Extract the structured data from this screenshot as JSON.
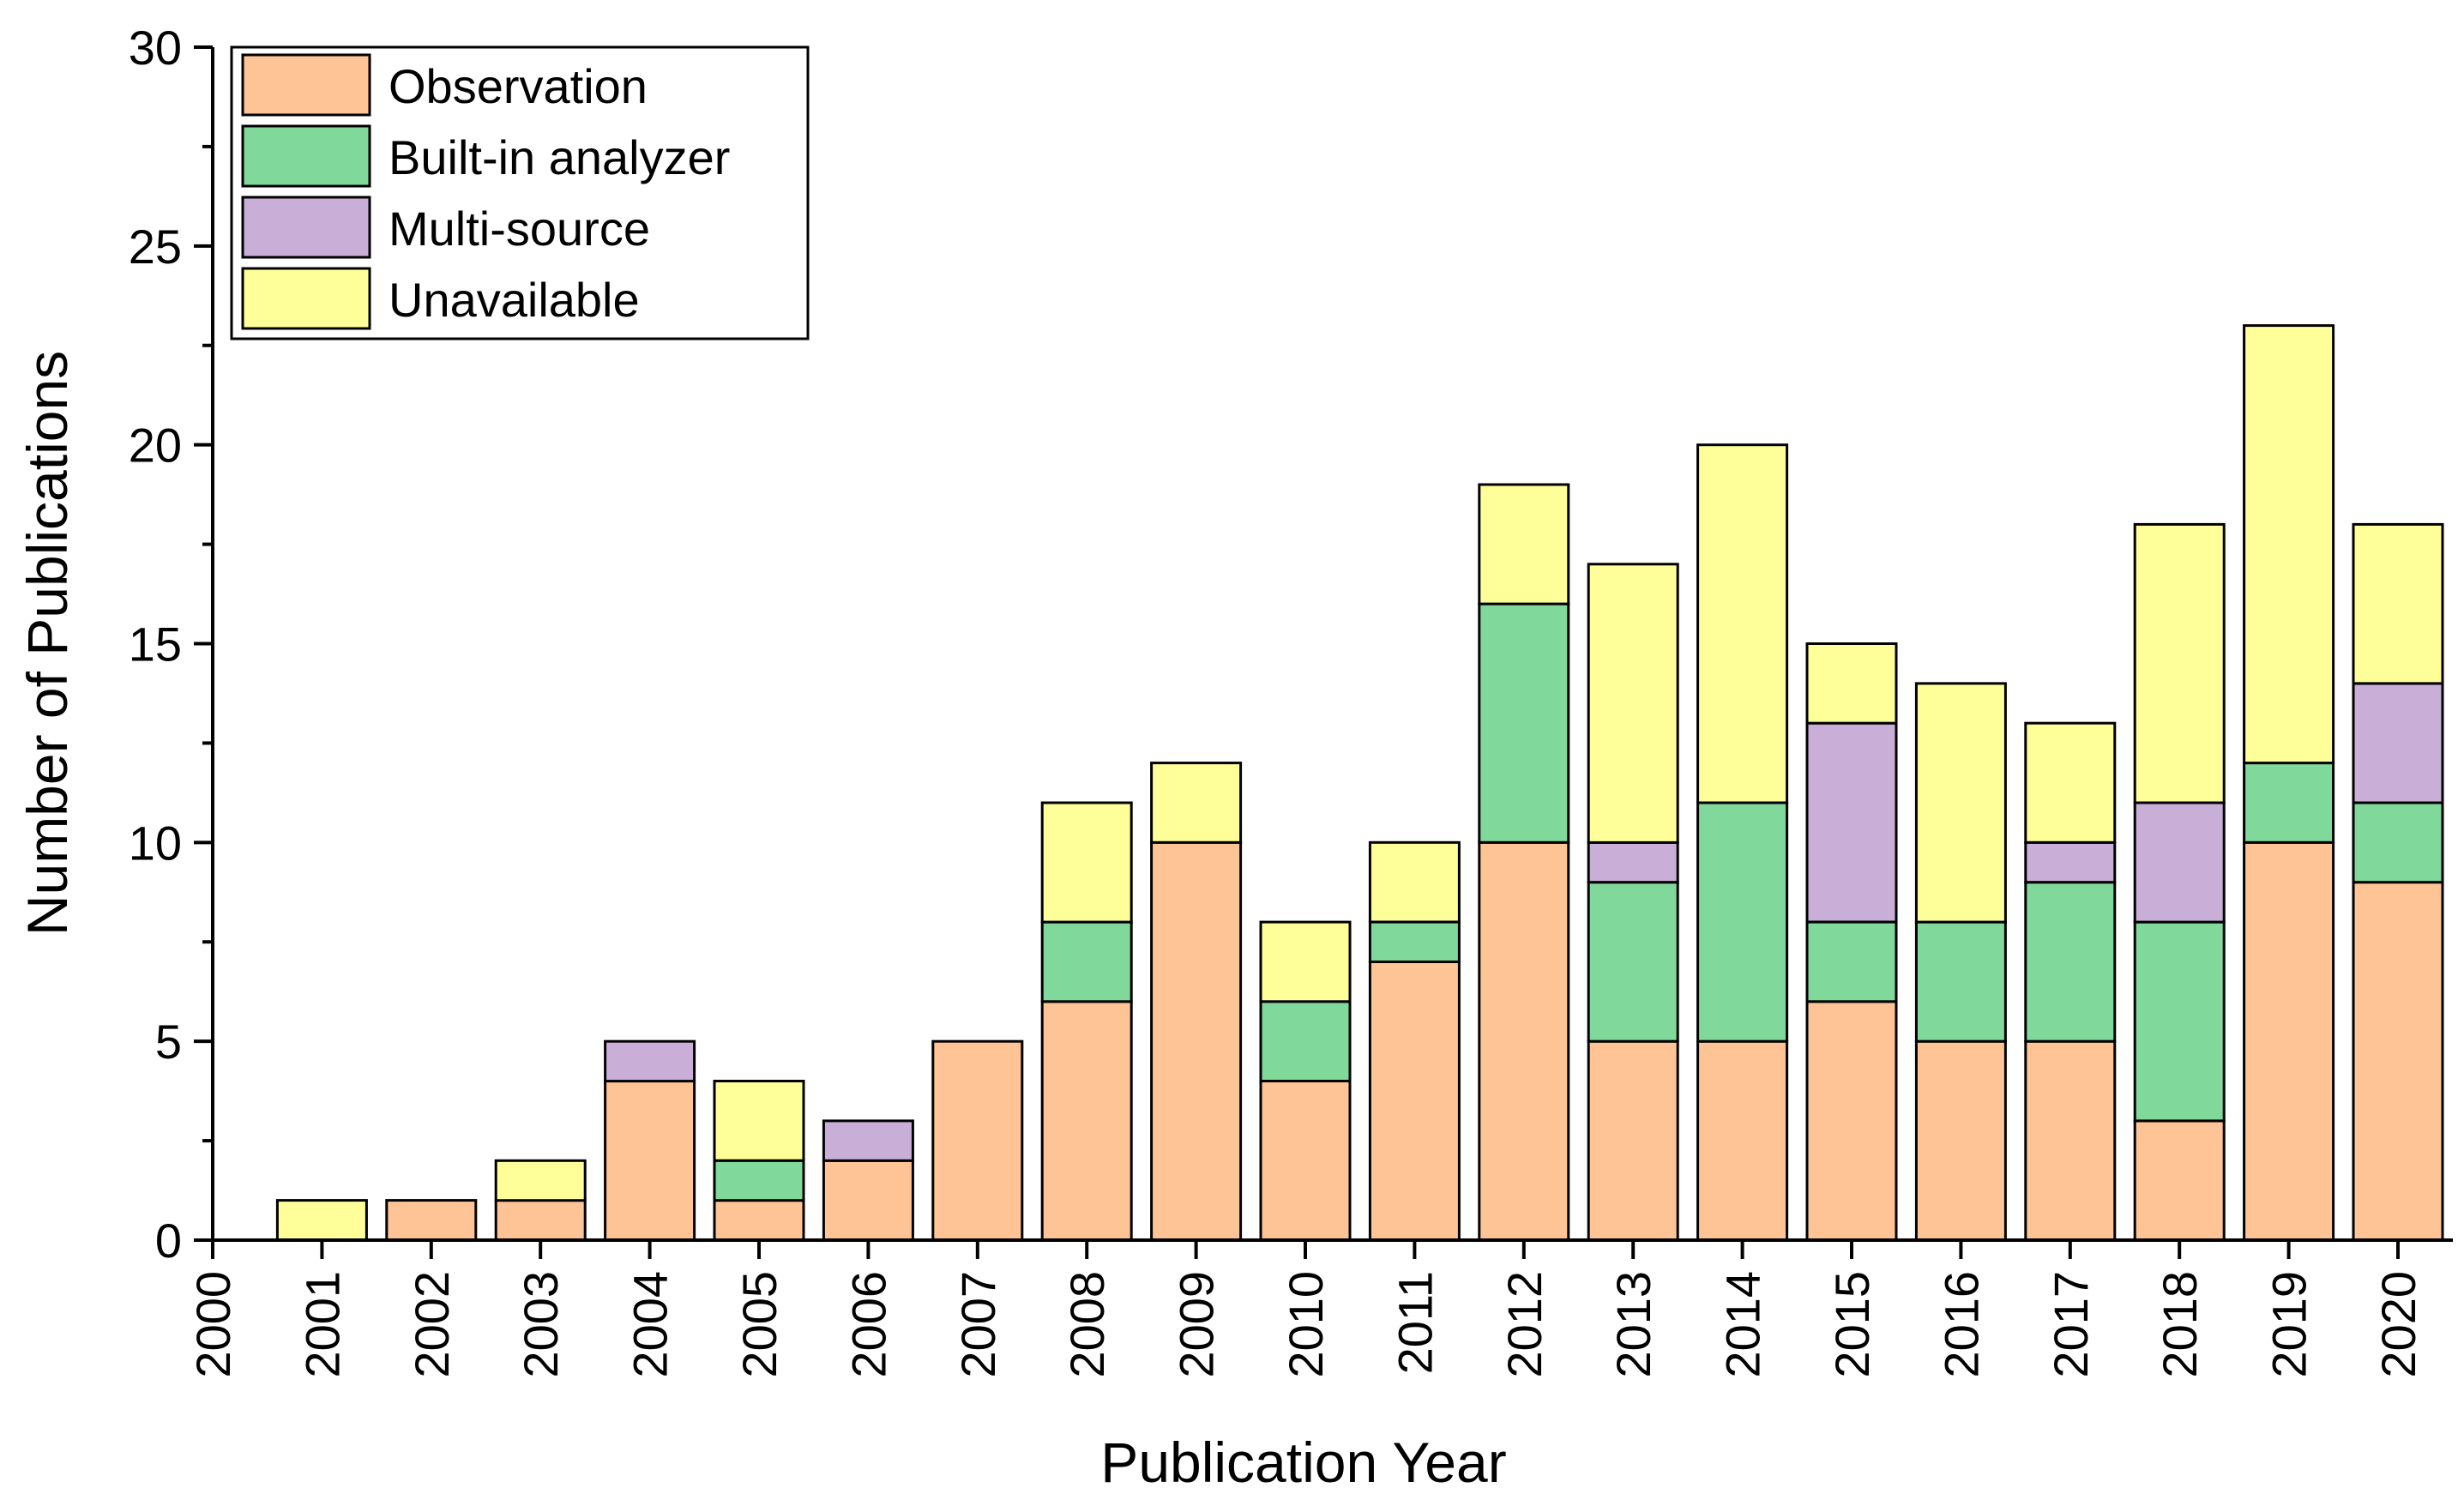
{
  "chart_data": {
    "type": "bar",
    "stacked": true,
    "title": "",
    "xlabel": "Publication Year",
    "ylabel": "Number of Publications",
    "ylim": [
      0,
      30
    ],
    "yticks": [
      0,
      5,
      10,
      15,
      20,
      25,
      30
    ],
    "categories": [
      "2000",
      "2001",
      "2002",
      "2003",
      "2004",
      "2005",
      "2006",
      "2007",
      "2008",
      "2009",
      "2010",
      "2011",
      "2012",
      "2013",
      "2014",
      "2015",
      "2016",
      "2017",
      "2018",
      "2019",
      "2020"
    ],
    "series": [
      {
        "name": "Observation",
        "color": "#FFC495",
        "values": [
          0,
          0,
          1,
          1,
          4,
          1,
          2,
          5,
          6,
          10,
          4,
          7,
          10,
          5,
          5,
          6,
          5,
          5,
          3,
          10,
          9
        ]
      },
      {
        "name": "Built-in analyzer",
        "color": "#80D99B",
        "values": [
          0,
          0,
          0,
          0,
          0,
          1,
          0,
          0,
          2,
          0,
          2,
          1,
          6,
          4,
          6,
          2,
          3,
          4,
          5,
          2,
          2
        ]
      },
      {
        "name": "Multi-source",
        "color": "#C9AFD8",
        "values": [
          0,
          0,
          0,
          0,
          1,
          0,
          1,
          0,
          0,
          0,
          0,
          0,
          0,
          1,
          0,
          5,
          0,
          1,
          3,
          0,
          3
        ]
      },
      {
        "name": "Unavailable",
        "color": "#FFFF9A",
        "values": [
          0,
          1,
          0,
          1,
          0,
          2,
          0,
          0,
          3,
          2,
          2,
          2,
          3,
          7,
          9,
          2,
          6,
          3,
          7,
          11,
          4
        ]
      }
    ],
    "legend_position": "top-left",
    "grid": false
  }
}
